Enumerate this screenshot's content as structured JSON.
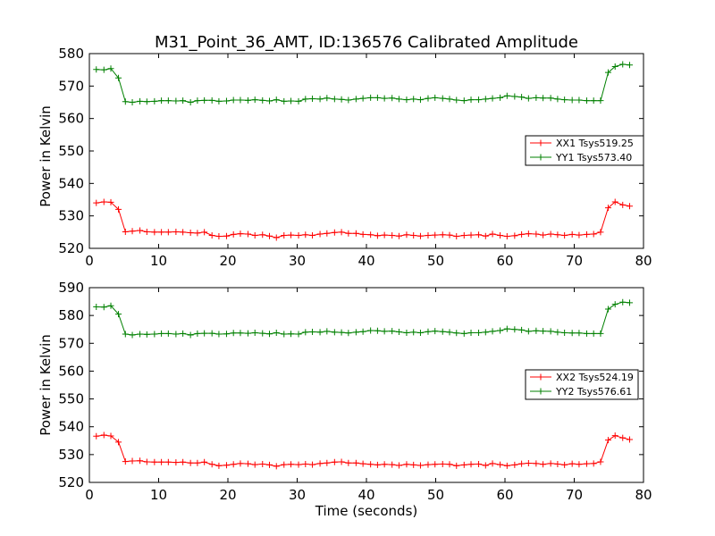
{
  "chart_data": [
    {
      "type": "line",
      "title": "M31_Point_36_AMT, ID:136576 Calibrated Amplitude",
      "xlabel": "",
      "ylabel": "Power in Kelvin",
      "xlim": [
        0,
        80
      ],
      "ylim": [
        520,
        580
      ],
      "x_ticks": [
        "0",
        "10",
        "20",
        "30",
        "40",
        "50",
        "60",
        "70",
        "80"
      ],
      "y_ticks": [
        "520",
        "530",
        "540",
        "550",
        "560",
        "570",
        "580"
      ],
      "legend_position": "center-right",
      "x": [
        1.0,
        2.1,
        3.1,
        4.2,
        5.2,
        6.2,
        7.3,
        8.3,
        9.4,
        10.4,
        11.4,
        12.5,
        13.5,
        14.6,
        15.6,
        16.6,
        17.7,
        18.7,
        19.8,
        20.8,
        21.8,
        22.9,
        23.9,
        25.0,
        26.0,
        27.0,
        28.1,
        29.1,
        30.2,
        31.2,
        32.2,
        33.3,
        34.3,
        35.4,
        36.4,
        37.4,
        38.5,
        39.5,
        40.6,
        41.6,
        42.6,
        43.7,
        44.7,
        45.8,
        46.8,
        47.8,
        48.9,
        49.9,
        51.0,
        52.0,
        53.0,
        54.1,
        55.1,
        56.2,
        57.2,
        58.2,
        59.3,
        60.3,
        61.4,
        62.4,
        63.4,
        64.5,
        65.5,
        66.6,
        67.6,
        68.6,
        69.7,
        70.7,
        71.8,
        72.8,
        73.8,
        74.9,
        75.9,
        77.0,
        78.0
      ],
      "series": [
        {
          "name": "XX1 Tsys519.25",
          "color": "#ff0000",
          "values": [
            534.0,
            534.3,
            534.2,
            532.0,
            525.1,
            525.3,
            525.5,
            525.1,
            525.0,
            525.0,
            525.0,
            525.1,
            525.0,
            524.8,
            524.7,
            525.0,
            524.0,
            523.7,
            523.8,
            524.3,
            524.5,
            524.4,
            524.0,
            524.2,
            523.8,
            523.3,
            524.0,
            524.1,
            524.0,
            524.2,
            524.0,
            524.4,
            524.6,
            524.9,
            525.0,
            524.6,
            524.6,
            524.3,
            524.2,
            523.9,
            524.1,
            524.0,
            523.8,
            524.2,
            524.0,
            523.8,
            524.0,
            524.1,
            524.2,
            524.1,
            523.7,
            524.0,
            524.1,
            524.2,
            523.8,
            524.4,
            524.0,
            523.7,
            523.9,
            524.3,
            524.5,
            524.4,
            524.1,
            524.4,
            524.2,
            524.0,
            524.3,
            524.1,
            524.3,
            524.4,
            525.0,
            532.5,
            534.3,
            533.4,
            533.0
          ]
        },
        {
          "name": "YY1 Tsys573.40",
          "color": "#008000",
          "values": [
            575.1,
            575.0,
            575.4,
            572.5,
            565.2,
            565.0,
            565.3,
            565.2,
            565.3,
            565.5,
            565.5,
            565.4,
            565.5,
            565.0,
            565.5,
            565.6,
            565.6,
            565.3,
            565.4,
            565.7,
            565.7,
            565.6,
            565.8,
            565.6,
            565.4,
            565.8,
            565.3,
            565.4,
            565.3,
            566.0,
            566.1,
            566.0,
            566.3,
            566.0,
            565.9,
            565.7,
            566.0,
            566.2,
            566.4,
            566.4,
            566.2,
            566.3,
            566.0,
            565.8,
            566.0,
            565.8,
            566.2,
            566.4,
            566.2,
            566.0,
            565.7,
            565.5,
            565.8,
            565.8,
            566.0,
            566.2,
            566.4,
            567.0,
            566.8,
            566.6,
            566.2,
            566.4,
            566.3,
            566.3,
            566.0,
            565.8,
            565.7,
            565.7,
            565.5,
            565.5,
            565.5,
            574.2,
            576.0,
            576.7,
            576.5
          ]
        }
      ]
    },
    {
      "type": "line",
      "title": "",
      "xlabel": "Time (seconds)",
      "ylabel": "Power in Kelvin",
      "xlim": [
        0,
        80
      ],
      "ylim": [
        520,
        590
      ],
      "x_ticks": [
        "0",
        "10",
        "20",
        "30",
        "40",
        "50",
        "60",
        "70",
        "80"
      ],
      "y_ticks": [
        "520",
        "530",
        "540",
        "550",
        "560",
        "570",
        "580",
        "590"
      ],
      "legend_position": "center-right",
      "x": [
        1.0,
        2.1,
        3.1,
        4.2,
        5.2,
        6.2,
        7.3,
        8.3,
        9.4,
        10.4,
        11.4,
        12.5,
        13.5,
        14.6,
        15.6,
        16.6,
        17.7,
        18.7,
        19.8,
        20.8,
        21.8,
        22.9,
        23.9,
        25.0,
        26.0,
        27.0,
        28.1,
        29.1,
        30.2,
        31.2,
        32.2,
        33.3,
        34.3,
        35.4,
        36.4,
        37.4,
        38.5,
        39.5,
        40.6,
        41.6,
        42.6,
        43.7,
        44.7,
        45.8,
        46.8,
        47.8,
        48.9,
        49.9,
        51.0,
        52.0,
        53.0,
        54.1,
        55.1,
        56.2,
        57.2,
        58.2,
        59.3,
        60.3,
        61.4,
        62.4,
        63.4,
        64.5,
        65.5,
        66.6,
        67.6,
        68.6,
        69.7,
        70.7,
        71.8,
        72.8,
        73.8,
        74.9,
        75.9,
        77.0,
        78.0
      ],
      "series": [
        {
          "name": "XX2 Tsys524.19",
          "color": "#ff0000",
          "values": [
            536.6,
            537.0,
            536.7,
            534.5,
            527.5,
            527.7,
            527.8,
            527.4,
            527.3,
            527.3,
            527.3,
            527.2,
            527.3,
            527.0,
            527.0,
            527.3,
            526.5,
            526.0,
            526.2,
            526.5,
            526.8,
            526.7,
            526.4,
            526.6,
            526.3,
            525.8,
            526.4,
            526.5,
            526.4,
            526.6,
            526.4,
            526.8,
            527.0,
            527.3,
            527.4,
            527.0,
            527.0,
            526.7,
            526.5,
            526.3,
            526.5,
            526.4,
            526.1,
            526.5,
            526.3,
            526.1,
            526.4,
            526.5,
            526.6,
            526.5,
            526.0,
            526.3,
            526.5,
            526.6,
            526.1,
            526.8,
            526.4,
            526.0,
            526.3,
            526.7,
            526.9,
            526.8,
            526.5,
            526.8,
            526.6,
            526.3,
            526.7,
            526.5,
            526.7,
            526.8,
            527.4,
            535.2,
            536.8,
            536.0,
            535.4
          ]
        },
        {
          "name": "YY2 Tsys576.61",
          "color": "#008000",
          "values": [
            583.1,
            583.0,
            583.5,
            580.5,
            573.3,
            573.0,
            573.3,
            573.2,
            573.3,
            573.5,
            573.5,
            573.3,
            573.5,
            573.0,
            573.5,
            573.6,
            573.6,
            573.3,
            573.4,
            573.7,
            573.7,
            573.6,
            573.8,
            573.6,
            573.4,
            573.8,
            573.3,
            573.4,
            573.3,
            574.0,
            574.1,
            574.0,
            574.3,
            574.0,
            573.9,
            573.7,
            574.0,
            574.2,
            574.6,
            574.5,
            574.3,
            574.4,
            574.1,
            573.8,
            574.0,
            573.8,
            574.2,
            574.4,
            574.2,
            574.0,
            573.7,
            573.5,
            573.8,
            573.8,
            574.0,
            574.3,
            574.6,
            575.2,
            575.0,
            574.8,
            574.3,
            574.5,
            574.4,
            574.3,
            574.0,
            573.8,
            573.7,
            573.7,
            573.5,
            573.5,
            573.5,
            582.3,
            584.0,
            584.8,
            584.6
          ]
        }
      ]
    }
  ]
}
